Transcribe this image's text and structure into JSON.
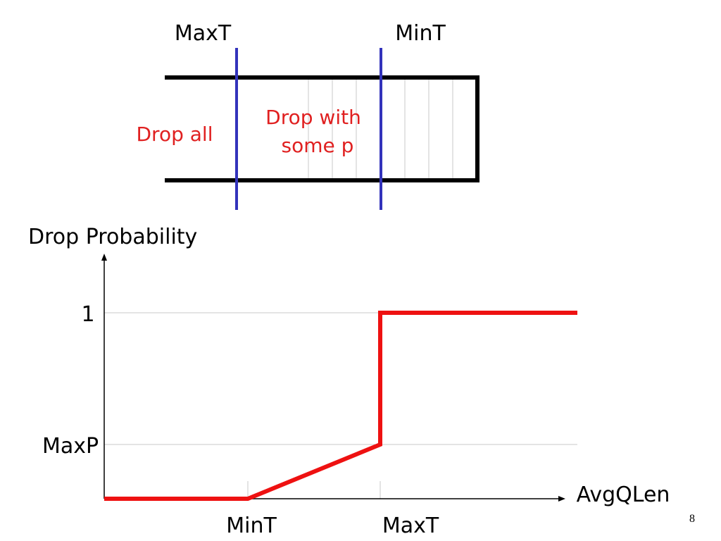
{
  "queue": {
    "maxt_label": "MaxT",
    "mint_label": "MinT",
    "drop_all_label": "Drop all",
    "drop_with_label_line1": "Drop with",
    "drop_with_label_line2": "some p",
    "divider_color": "#3333bb",
    "drop_text_color": "#e02020"
  },
  "graph": {
    "ylabel": "Drop Probability",
    "xlabel": "AvgQLen",
    "y_tick_1": "1",
    "y_tick_maxp": "MaxP",
    "x_tick_mint": "MinT",
    "x_tick_maxt": "MaxT",
    "line_color": "#ee1111"
  },
  "chart_data": {
    "type": "line",
    "title": "",
    "xlabel": "AvgQLen",
    "ylabel": "Drop Probability",
    "x_ticks": [
      "MinT",
      "MaxT"
    ],
    "y_ticks": [
      "MaxP",
      "1"
    ],
    "series": [
      {
        "points": [
          [
            "0",
            0
          ],
          [
            "MinT",
            0
          ],
          [
            "MaxT",
            "MaxP"
          ],
          [
            "MaxT",
            1
          ],
          [
            "end",
            1
          ]
        ]
      }
    ]
  },
  "page_number": "8"
}
